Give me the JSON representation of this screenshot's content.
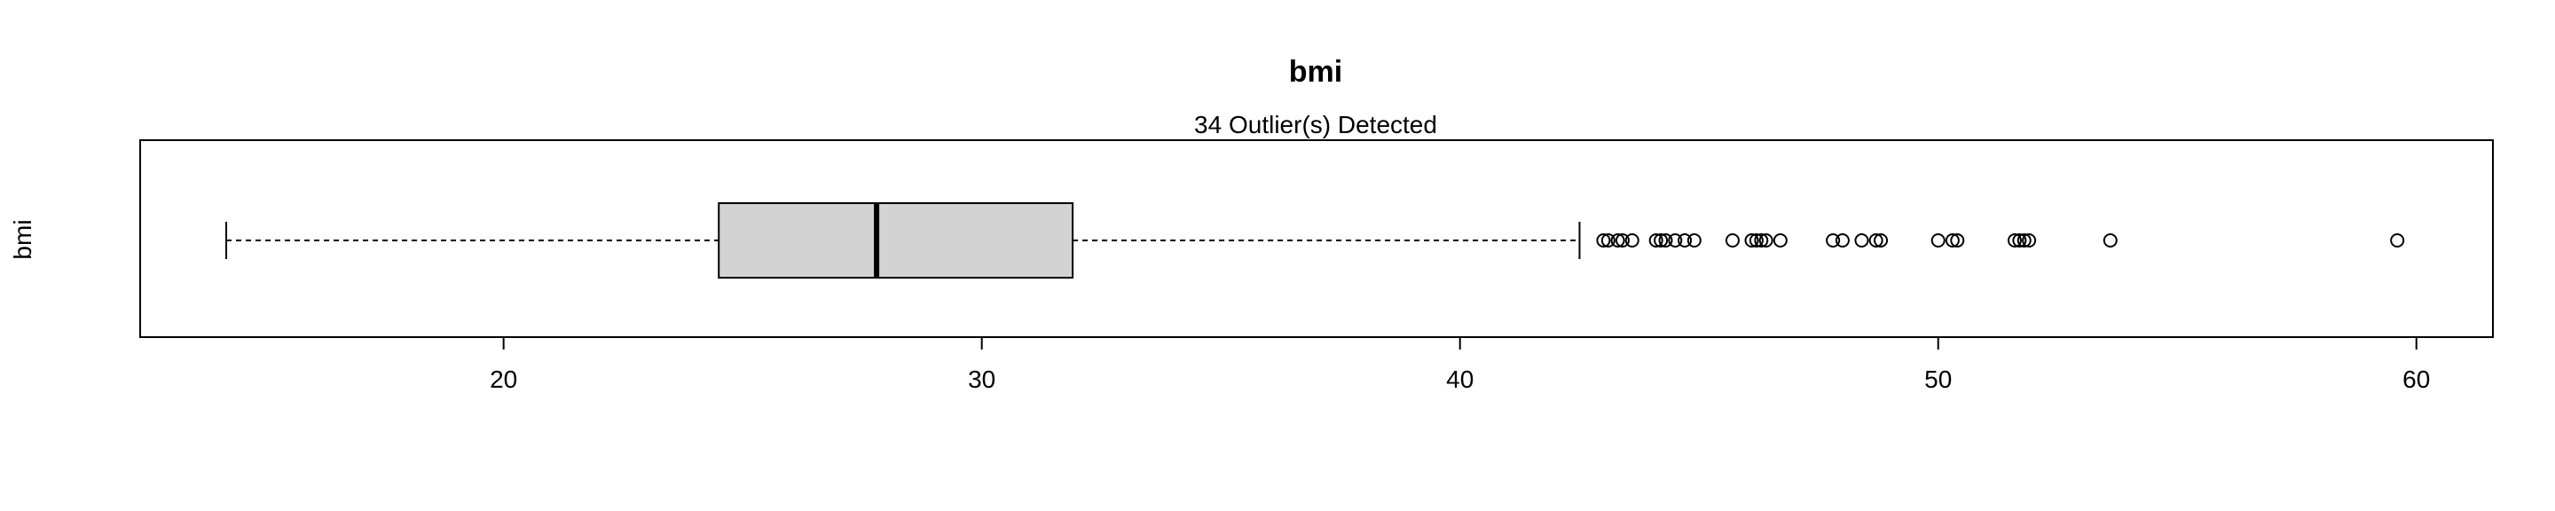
{
  "chart_data": {
    "type": "boxplot",
    "orientation": "horizontal",
    "title": "bmi",
    "subtitle": "34 Outlier(s) Detected",
    "ylabel": "bmi",
    "xlabel": "",
    "xlim": [
      12.4,
      61.6
    ],
    "xticks": [
      20,
      30,
      40,
      50,
      60
    ],
    "series": [
      {
        "name": "bmi",
        "whisker_low": 14.2,
        "q1": 24.5,
        "median": 27.8,
        "q3": 31.9,
        "whisker_high": 42.5,
        "outliers": [
          43.0,
          43.1,
          43.3,
          43.4,
          43.6,
          44.1,
          44.2,
          44.3,
          44.5,
          44.7,
          44.9,
          45.7,
          46.1,
          46.2,
          46.3,
          46.4,
          46.7,
          47.8,
          48.0,
          48.4,
          48.7,
          48.8,
          50.0,
          50.3,
          50.4,
          51.6,
          51.7,
          51.8,
          51.9,
          53.6,
          59.6
        ]
      }
    ],
    "grid": false,
    "colors": {
      "box_fill": "#d3d3d3",
      "stroke": "#000000",
      "background": "#ffffff"
    }
  }
}
